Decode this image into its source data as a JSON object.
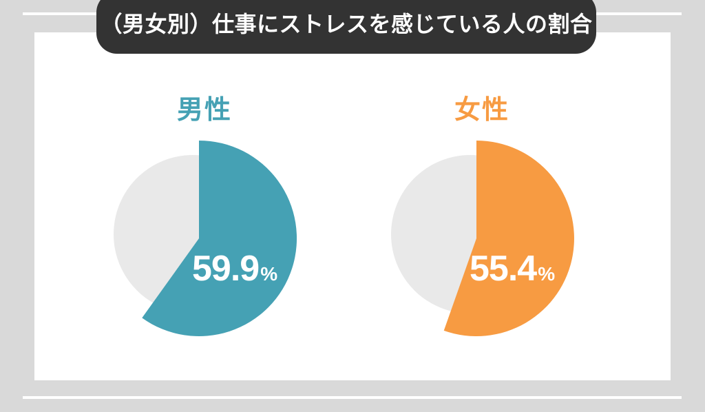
{
  "page": {
    "background_color": "#d9d9d9",
    "card_color": "#ffffff",
    "accent_line_color": "#ffffff"
  },
  "header": {
    "title": "（男女別）仕事にストレスを感じている人の割合",
    "background": "#333333",
    "text_color": "#ffffff"
  },
  "chart_data": {
    "type": "pie",
    "title": "（男女別）仕事にストレスを感じている人の割合",
    "unit": "%",
    "value_text_color": "#ffffff",
    "start_angle": "12-o-clock, clockwise",
    "series": [
      {
        "name": "男性",
        "value": 59.9,
        "value_label": "59.9",
        "slice_color": "#45a1b4",
        "remainder_value": 40.1,
        "remainder_color": "#e9e9e9"
      },
      {
        "name": "女性",
        "value": 55.4,
        "value_label": "55.4",
        "slice_color": "#f79b42",
        "remainder_value": 44.6,
        "remainder_color": "#e9e9e9"
      }
    ]
  }
}
